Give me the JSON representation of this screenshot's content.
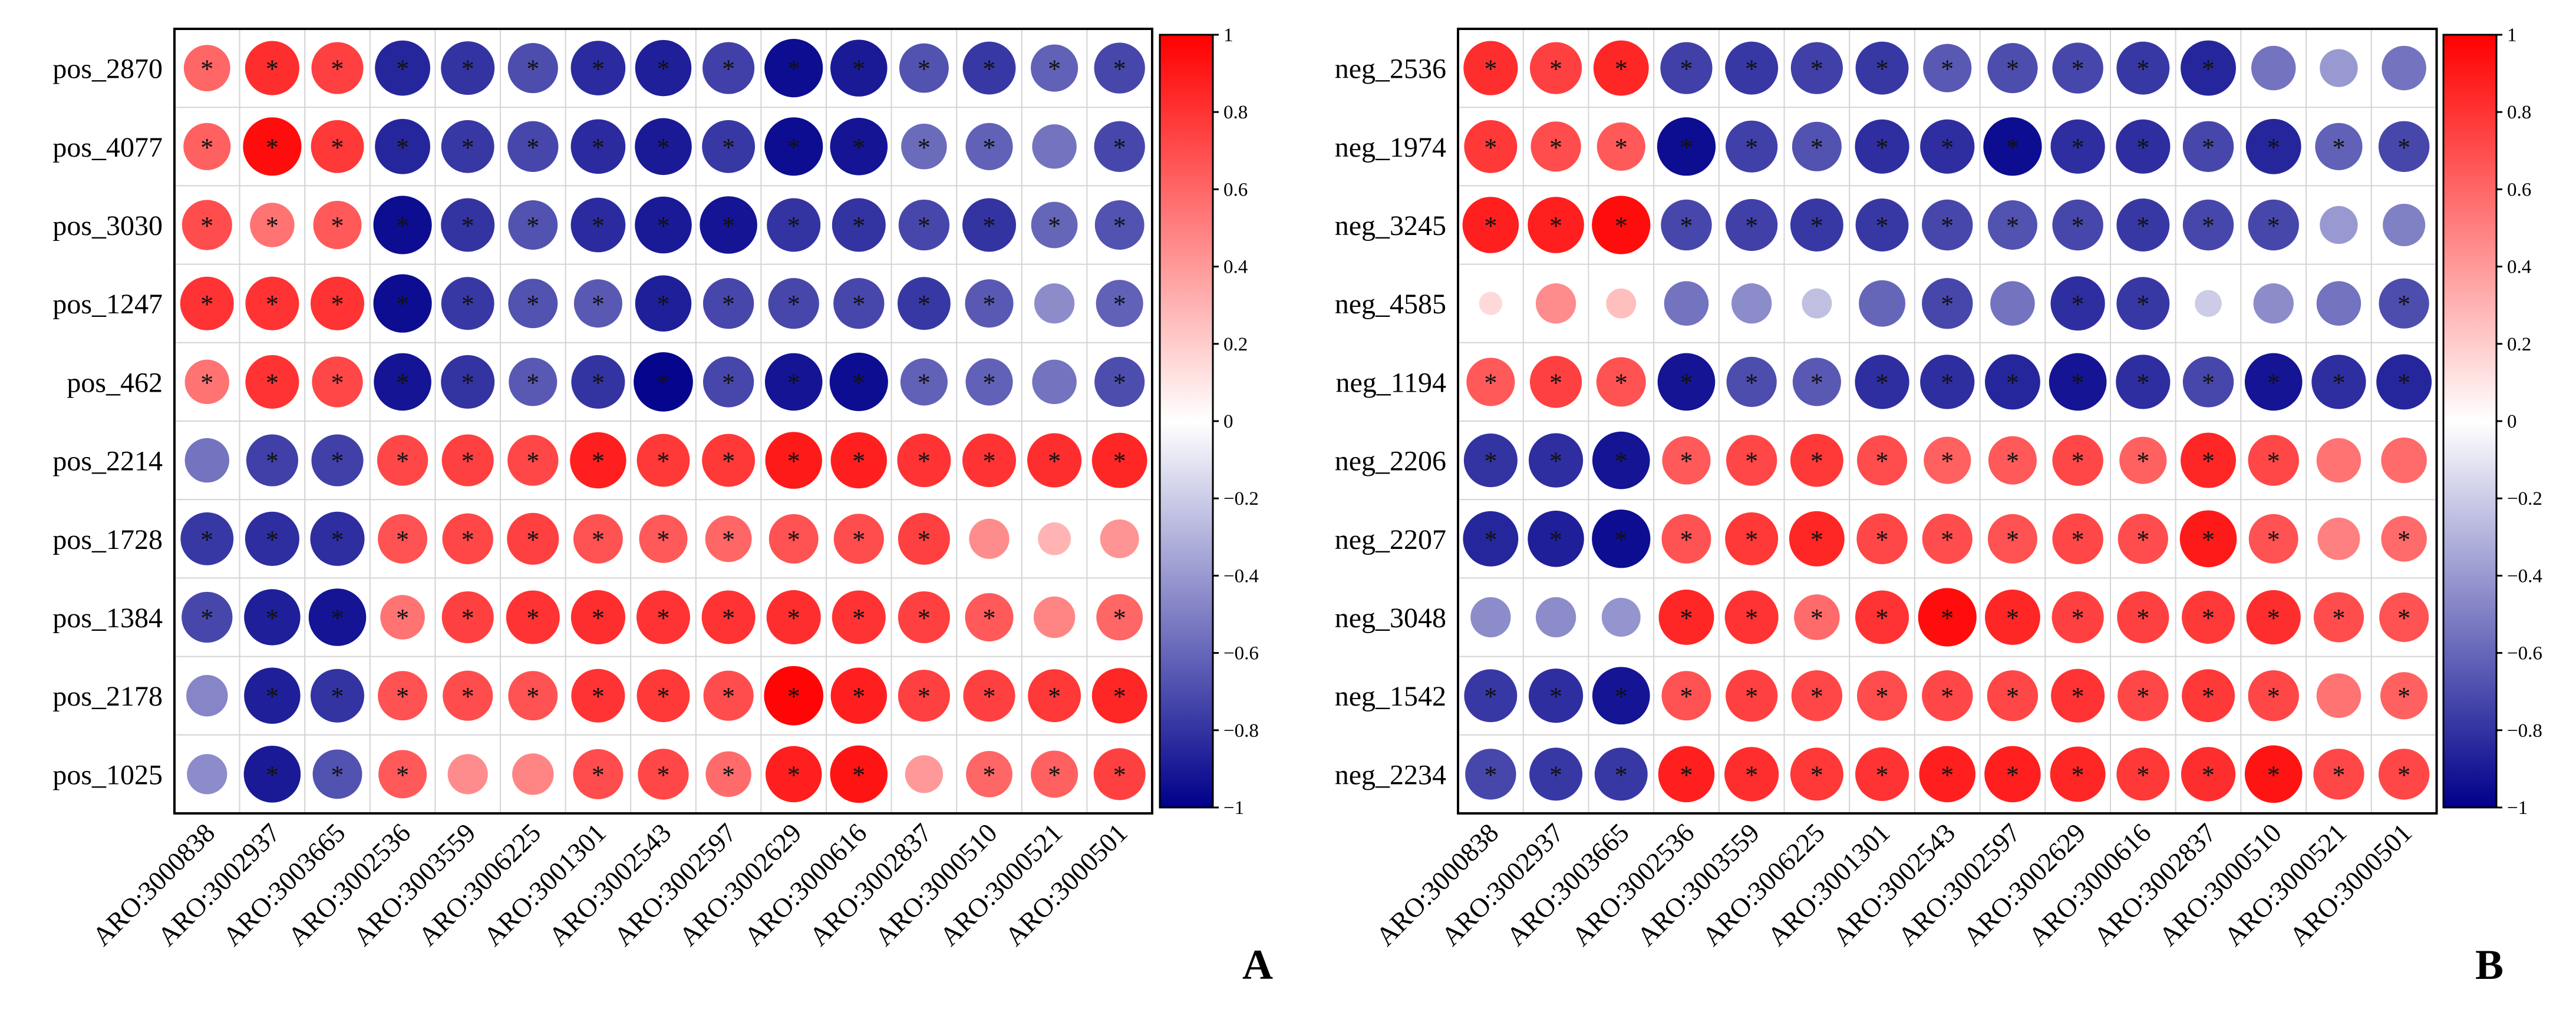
{
  "chart_data": [
    {
      "type": "heatmap",
      "variant": "correlation-bubble",
      "panel_label": "A",
      "colorbar": {
        "min": -1,
        "max": 1,
        "ticks": [
          "1",
          "0.8",
          "0.6",
          "0.4",
          "0.2",
          "0",
          "−0.2",
          "−0.4",
          "−0.6",
          "−0.8",
          "−1"
        ]
      },
      "colors": {
        "negative": "#00008B",
        "zero": "#ffffff",
        "positive": "#ff0000"
      },
      "significance_marker": "*",
      "rows": [
        "pos_2870",
        "pos_4077",
        "pos_3030",
        "pos_1247",
        "pos_462",
        "pos_2214",
        "pos_1728",
        "pos_1384",
        "pos_2178",
        "pos_1025"
      ],
      "columns": [
        "ARO:3000838",
        "ARO:3002937",
        "ARO:3003665",
        "ARO:3002536",
        "ARO:3003559",
        "ARO:3006225",
        "ARO:3001301",
        "ARO:3002543",
        "ARO:3002597",
        "ARO:3002629",
        "ARO:3000616",
        "ARO:3002837",
        "ARO:3000510",
        "ARO:3000521",
        "ARO:3000501"
      ],
      "values": [
        [
          0.6,
          0.82,
          0.75,
          -0.85,
          -0.8,
          -0.7,
          -0.83,
          -0.88,
          -0.75,
          -0.95,
          -0.9,
          -0.68,
          -0.78,
          -0.62,
          -0.72
        ],
        [
          0.62,
          0.95,
          0.78,
          -0.85,
          -0.78,
          -0.72,
          -0.83,
          -0.9,
          -0.78,
          -0.95,
          -0.92,
          -0.58,
          -0.62,
          -0.55,
          -0.72
        ],
        [
          0.7,
          0.55,
          0.65,
          -0.95,
          -0.8,
          -0.68,
          -0.83,
          -0.9,
          -0.92,
          -0.8,
          -0.8,
          -0.72,
          -0.8,
          -0.6,
          -0.68
        ],
        [
          0.8,
          0.8,
          0.8,
          -0.95,
          -0.78,
          -0.68,
          -0.65,
          -0.88,
          -0.72,
          -0.72,
          -0.72,
          -0.78,
          -0.65,
          -0.45,
          -0.62
        ],
        [
          0.55,
          0.8,
          0.72,
          -0.92,
          -0.8,
          -0.65,
          -0.8,
          -0.98,
          -0.72,
          -0.92,
          -0.95,
          -0.62,
          -0.62,
          -0.55,
          -0.7
        ],
        [
          -0.55,
          -0.75,
          -0.75,
          0.72,
          0.75,
          0.72,
          0.88,
          0.78,
          0.78,
          0.9,
          0.88,
          0.8,
          0.8,
          0.82,
          0.85
        ],
        [
          -0.78,
          -0.82,
          -0.82,
          0.68,
          0.72,
          0.75,
          0.68,
          0.65,
          0.6,
          0.68,
          0.7,
          0.75,
          0.45,
          0.3,
          0.42
        ],
        [
          -0.72,
          -0.88,
          -0.92,
          0.55,
          0.75,
          0.8,
          0.82,
          0.8,
          0.8,
          0.82,
          0.8,
          0.75,
          0.65,
          0.48,
          0.6
        ],
        [
          -0.48,
          -0.88,
          -0.8,
          0.68,
          0.7,
          0.68,
          0.8,
          0.78,
          0.7,
          0.98,
          0.88,
          0.75,
          0.75,
          0.78,
          0.85
        ],
        [
          -0.45,
          -0.9,
          -0.68,
          0.65,
          0.45,
          0.48,
          0.7,
          0.72,
          0.58,
          0.88,
          0.92,
          0.4,
          0.6,
          0.62,
          0.75
        ]
      ],
      "significant": [
        [
          1,
          1,
          1,
          1,
          1,
          1,
          1,
          1,
          1,
          1,
          1,
          1,
          1,
          1,
          1
        ],
        [
          1,
          1,
          1,
          1,
          1,
          1,
          1,
          1,
          1,
          1,
          1,
          1,
          1,
          0,
          1
        ],
        [
          1,
          1,
          1,
          1,
          1,
          1,
          1,
          1,
          1,
          1,
          1,
          1,
          1,
          1,
          1
        ],
        [
          1,
          1,
          1,
          1,
          1,
          1,
          1,
          1,
          1,
          1,
          1,
          1,
          1,
          0,
          1
        ],
        [
          1,
          1,
          1,
          1,
          1,
          1,
          1,
          1,
          1,
          1,
          1,
          1,
          1,
          0,
          1
        ],
        [
          0,
          1,
          1,
          1,
          1,
          1,
          1,
          1,
          1,
          1,
          1,
          1,
          1,
          1,
          1
        ],
        [
          1,
          1,
          1,
          1,
          1,
          1,
          1,
          1,
          1,
          1,
          1,
          1,
          0,
          0,
          0
        ],
        [
          1,
          1,
          1,
          1,
          1,
          1,
          1,
          1,
          1,
          1,
          1,
          1,
          1,
          0,
          1
        ],
        [
          0,
          1,
          1,
          1,
          1,
          1,
          1,
          1,
          1,
          1,
          1,
          1,
          1,
          1,
          1
        ],
        [
          0,
          1,
          1,
          1,
          0,
          0,
          1,
          1,
          1,
          1,
          1,
          0,
          1,
          1,
          1
        ]
      ]
    },
    {
      "type": "heatmap",
      "variant": "correlation-bubble",
      "panel_label": "B",
      "colorbar": {
        "min": -1,
        "max": 1,
        "ticks": [
          "1",
          "0.8",
          "0.6",
          "0.4",
          "0.2",
          "0",
          "−0.2",
          "−0.4",
          "−0.6",
          "−0.8",
          "−1"
        ]
      },
      "colors": {
        "negative": "#00008B",
        "zero": "#ffffff",
        "positive": "#ff0000"
      },
      "significance_marker": "*",
      "rows": [
        "neg_2536",
        "neg_1974",
        "neg_3245",
        "neg_4585",
        "neg_1194",
        "neg_2206",
        "neg_2207",
        "neg_3048",
        "neg_1542",
        "neg_2234"
      ],
      "columns": [
        "ARO:3000838",
        "ARO:3002937",
        "ARO:3003665",
        "ARO:3002536",
        "ARO:3003559",
        "ARO:3006225",
        "ARO:3001301",
        "ARO:3002543",
        "ARO:3002597",
        "ARO:3002629",
        "ARO:3000616",
        "ARO:3002837",
        "ARO:3000510",
        "ARO:3000521",
        "ARO:3000501"
      ],
      "values": [
        [
          0.82,
          0.75,
          0.85,
          -0.75,
          -0.78,
          -0.75,
          -0.78,
          -0.65,
          -0.7,
          -0.72,
          -0.78,
          -0.85,
          -0.55,
          -0.4,
          -0.55
        ],
        [
          0.78,
          0.7,
          0.65,
          -0.95,
          -0.75,
          -0.68,
          -0.82,
          -0.82,
          -0.95,
          -0.82,
          -0.82,
          -0.72,
          -0.85,
          -0.62,
          -0.72
        ],
        [
          0.88,
          0.88,
          0.95,
          -0.72,
          -0.75,
          -0.78,
          -0.78,
          -0.72,
          -0.68,
          -0.72,
          -0.78,
          -0.72,
          -0.72,
          -0.4,
          -0.5
        ],
        [
          0.15,
          0.45,
          0.25,
          -0.55,
          -0.45,
          -0.25,
          -0.6,
          -0.72,
          -0.55,
          -0.82,
          -0.78,
          -0.2,
          -0.45,
          -0.55,
          -0.7
        ],
        [
          0.65,
          0.75,
          0.68,
          -0.92,
          -0.7,
          -0.65,
          -0.82,
          -0.82,
          -0.85,
          -0.92,
          -0.82,
          -0.72,
          -0.92,
          -0.82,
          -0.85
        ],
        [
          -0.8,
          -0.82,
          -0.92,
          0.65,
          0.72,
          0.78,
          0.7,
          0.62,
          0.65,
          0.72,
          0.62,
          0.85,
          0.72,
          0.55,
          0.58
        ],
        [
          -0.85,
          -0.88,
          -0.95,
          0.68,
          0.78,
          0.85,
          0.72,
          0.7,
          0.68,
          0.72,
          0.7,
          0.9,
          0.68,
          0.5,
          0.58
        ],
        [
          -0.45,
          -0.45,
          -0.42,
          0.85,
          0.8,
          0.58,
          0.8,
          0.95,
          0.85,
          0.75,
          0.75,
          0.78,
          0.82,
          0.7,
          0.68
        ],
        [
          -0.78,
          -0.82,
          -0.92,
          0.68,
          0.75,
          0.72,
          0.7,
          0.72,
          0.72,
          0.8,
          0.72,
          0.78,
          0.72,
          0.55,
          0.62
        ],
        [
          -0.72,
          -0.78,
          -0.78,
          0.88,
          0.82,
          0.78,
          0.8,
          0.88,
          0.88,
          0.85,
          0.78,
          0.82,
          0.92,
          0.72,
          0.72
        ]
      ],
      "significant": [
        [
          1,
          1,
          1,
          1,
          1,
          1,
          1,
          1,
          1,
          1,
          1,
          1,
          0,
          0,
          0
        ],
        [
          1,
          1,
          1,
          1,
          1,
          1,
          1,
          1,
          1,
          1,
          1,
          1,
          1,
          1,
          1
        ],
        [
          1,
          1,
          1,
          1,
          1,
          1,
          1,
          1,
          1,
          1,
          1,
          1,
          1,
          0,
          0
        ],
        [
          0,
          0,
          0,
          0,
          0,
          0,
          0,
          1,
          0,
          1,
          1,
          0,
          0,
          0,
          1
        ],
        [
          1,
          1,
          1,
          1,
          1,
          1,
          1,
          1,
          1,
          1,
          1,
          1,
          1,
          1,
          1
        ],
        [
          1,
          1,
          1,
          1,
          1,
          1,
          1,
          1,
          1,
          1,
          1,
          1,
          1,
          0,
          0
        ],
        [
          1,
          1,
          1,
          1,
          1,
          1,
          1,
          1,
          1,
          1,
          1,
          1,
          1,
          0,
          1
        ],
        [
          0,
          0,
          0,
          1,
          1,
          1,
          1,
          1,
          1,
          1,
          1,
          1,
          1,
          1,
          1
        ],
        [
          1,
          1,
          1,
          1,
          1,
          1,
          1,
          1,
          1,
          1,
          1,
          1,
          1,
          0,
          1
        ],
        [
          1,
          1,
          1,
          1,
          1,
          1,
          1,
          1,
          1,
          1,
          1,
          1,
          1,
          1,
          1
        ]
      ]
    }
  ]
}
